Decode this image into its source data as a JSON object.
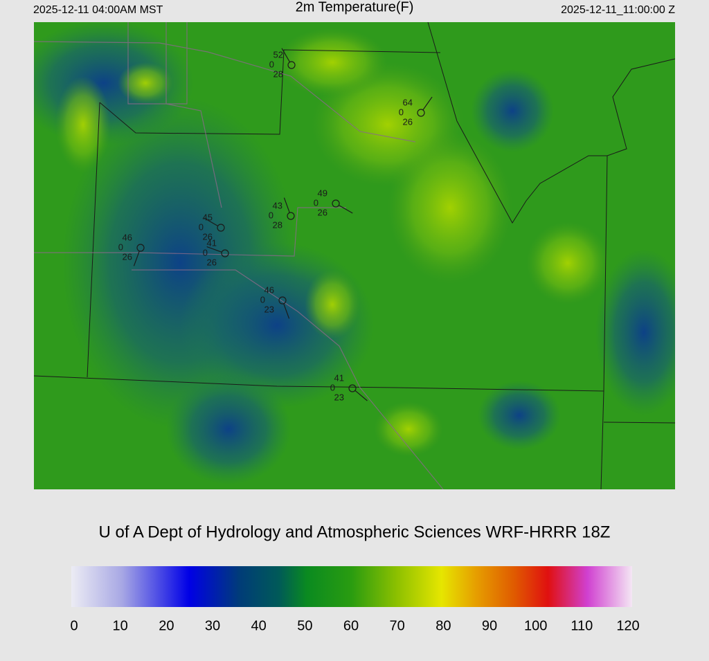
{
  "header": {
    "valid_local": "2025-12-11 04:00AM MST",
    "title": "2m Temperature(F)",
    "valid_utc": "2025-12-11_11:00:00 Z"
  },
  "stations": [
    {
      "temperature": 52,
      "wind": 0,
      "dewpoint": 28
    },
    {
      "temperature": 64,
      "wind": 0,
      "dewpoint": 26
    },
    {
      "temperature": 49,
      "wind": 0,
      "dewpoint": 26
    },
    {
      "temperature": 43,
      "wind": 0,
      "dewpoint": 28
    },
    {
      "temperature": 45,
      "wind": 0,
      "dewpoint": 26
    },
    {
      "temperature": 41,
      "wind": 0,
      "dewpoint": 26
    },
    {
      "temperature": 46,
      "wind": 0,
      "dewpoint": 26
    },
    {
      "temperature": 46,
      "wind": 0,
      "dewpoint": 23
    },
    {
      "temperature": 41,
      "wind": 0,
      "dewpoint": 23
    }
  ],
  "footer": "U of A Dept of Hydrology and Atmospheric Sciences WRF-HRRR 18Z",
  "colorbar": {
    "ticks": [
      0,
      10,
      20,
      30,
      40,
      50,
      60,
      70,
      80,
      90,
      100,
      110,
      120
    ]
  }
}
